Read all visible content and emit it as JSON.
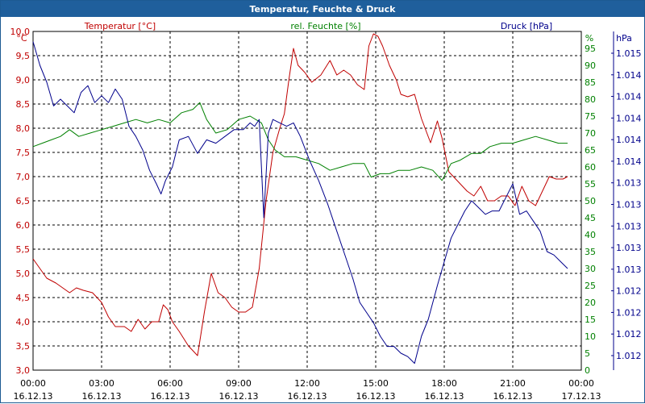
{
  "window": {
    "title": "Temperatur, Feuchte & Druck"
  },
  "chart_data": {
    "type": "line",
    "title": "Temperatur, Feuchte & Druck",
    "legend": {
      "temperature": "Temperatur [°C]",
      "humidity": "rel. Feuchte [%]",
      "pressure": "Druck [hPa]"
    },
    "units": {
      "temperature": "°C",
      "humidity": "%",
      "pressure": "hPa"
    },
    "x_ticks": [
      {
        "time": "00:00",
        "date": "16.12.13"
      },
      {
        "time": "03:00",
        "date": "16.12.13"
      },
      {
        "time": "06:00",
        "date": "16.12.13"
      },
      {
        "time": "09:00",
        "date": "16.12.13"
      },
      {
        "time": "12:00",
        "date": "16.12.13"
      },
      {
        "time": "15:00",
        "date": "16.12.13"
      },
      {
        "time": "18:00",
        "date": "16.12.13"
      },
      {
        "time": "21:00",
        "date": "16.12.13"
      },
      {
        "time": "00:00",
        "date": "17.12.13"
      }
    ],
    "xlim_hours": [
      0,
      24
    ],
    "temperature_axis": {
      "ylim": [
        3.0,
        10.0
      ],
      "ticks": [
        "10,0",
        "9,5",
        "9,0",
        "8,5",
        "8,0",
        "7,5",
        "7,0",
        "6,5",
        "6,0",
        "5,5",
        "5,0",
        "4,5",
        "4,0",
        "3,5",
        "3,0"
      ]
    },
    "humidity_axis": {
      "ylim": [
        0,
        100
      ],
      "ticks": [
        "95",
        "90",
        "85",
        "80",
        "75",
        "70",
        "65",
        "60",
        "55",
        "50",
        "45",
        "40",
        "35",
        "30",
        "25",
        "20",
        "15",
        "10",
        "5",
        "0"
      ]
    },
    "pressure_axis": {
      "ticks": [
        "1.015",
        "1.014",
        "1.014",
        "1.014",
        "1.014",
        "1.014",
        "1.013",
        "1.013",
        "1.013",
        "1.013",
        "1.013",
        "1.012",
        "1.012",
        "1.012",
        "1.012"
      ]
    },
    "grid": true,
    "colors": {
      "temperature": "#c00000",
      "humidity": "#008000",
      "pressure": "#00008b",
      "grid": "#000000",
      "title_bar": "#1f5f9c"
    },
    "series": [
      {
        "name": "Temperatur [°C]",
        "axis": "temperature",
        "points": [
          [
            0.0,
            5.3
          ],
          [
            0.3,
            5.1
          ],
          [
            0.6,
            4.9
          ],
          [
            1.0,
            4.8
          ],
          [
            1.3,
            4.7
          ],
          [
            1.6,
            4.6
          ],
          [
            1.9,
            4.7
          ],
          [
            2.2,
            4.65
          ],
          [
            2.6,
            4.6
          ],
          [
            3.0,
            4.4
          ],
          [
            3.3,
            4.1
          ],
          [
            3.6,
            3.9
          ],
          [
            4.0,
            3.9
          ],
          [
            4.3,
            3.8
          ],
          [
            4.6,
            4.05
          ],
          [
            4.9,
            3.85
          ],
          [
            5.2,
            4.0
          ],
          [
            5.5,
            4.0
          ],
          [
            5.7,
            4.35
          ],
          [
            5.9,
            4.25
          ],
          [
            6.1,
            4.0
          ],
          [
            6.4,
            3.8
          ],
          [
            6.8,
            3.5
          ],
          [
            7.2,
            3.3
          ],
          [
            7.5,
            4.2
          ],
          [
            7.8,
            5.0
          ],
          [
            8.1,
            4.6
          ],
          [
            8.4,
            4.5
          ],
          [
            8.7,
            4.3
          ],
          [
            9.0,
            4.2
          ],
          [
            9.3,
            4.2
          ],
          [
            9.6,
            4.3
          ],
          [
            9.9,
            5.1
          ],
          [
            10.2,
            6.5
          ],
          [
            10.5,
            7.5
          ],
          [
            10.8,
            8.0
          ],
          [
            11.0,
            8.3
          ],
          [
            11.2,
            9.0
          ],
          [
            11.4,
            9.65
          ],
          [
            11.6,
            9.3
          ],
          [
            11.9,
            9.15
          ],
          [
            12.2,
            8.95
          ],
          [
            12.6,
            9.1
          ],
          [
            13.0,
            9.4
          ],
          [
            13.3,
            9.1
          ],
          [
            13.6,
            9.2
          ],
          [
            13.9,
            9.1
          ],
          [
            14.2,
            8.9
          ],
          [
            14.5,
            8.8
          ],
          [
            14.7,
            9.7
          ],
          [
            14.9,
            9.95
          ],
          [
            15.1,
            9.9
          ],
          [
            15.3,
            9.7
          ],
          [
            15.6,
            9.3
          ],
          [
            15.9,
            9.0
          ],
          [
            16.1,
            8.7
          ],
          [
            16.4,
            8.65
          ],
          [
            16.7,
            8.7
          ],
          [
            17.0,
            8.2
          ],
          [
            17.4,
            7.7
          ],
          [
            17.7,
            8.15
          ],
          [
            17.9,
            7.8
          ],
          [
            18.2,
            7.1
          ],
          [
            18.6,
            6.9
          ],
          [
            19.0,
            6.7
          ],
          [
            19.3,
            6.6
          ],
          [
            19.6,
            6.8
          ],
          [
            19.9,
            6.5
          ],
          [
            20.2,
            6.5
          ],
          [
            20.5,
            6.6
          ],
          [
            20.8,
            6.6
          ],
          [
            21.1,
            6.4
          ],
          [
            21.4,
            6.8
          ],
          [
            21.7,
            6.5
          ],
          [
            22.0,
            6.4
          ],
          [
            22.3,
            6.7
          ],
          [
            22.6,
            7.0
          ],
          [
            22.9,
            6.95
          ],
          [
            23.2,
            6.95
          ],
          [
            23.4,
            7.0
          ]
        ]
      },
      {
        "name": "rel. Feuchte [%]",
        "axis": "humidity",
        "points": [
          [
            0.0,
            66
          ],
          [
            0.4,
            67
          ],
          [
            0.8,
            68
          ],
          [
            1.2,
            69
          ],
          [
            1.6,
            71
          ],
          [
            2.0,
            69
          ],
          [
            2.5,
            70
          ],
          [
            3.0,
            71
          ],
          [
            3.5,
            72
          ],
          [
            4.0,
            73
          ],
          [
            4.5,
            74
          ],
          [
            5.0,
            73
          ],
          [
            5.5,
            74
          ],
          [
            6.0,
            73
          ],
          [
            6.5,
            76
          ],
          [
            7.0,
            77
          ],
          [
            7.3,
            79
          ],
          [
            7.6,
            74
          ],
          [
            8.0,
            70
          ],
          [
            8.5,
            71
          ],
          [
            9.0,
            74
          ],
          [
            9.5,
            75
          ],
          [
            10.0,
            73
          ],
          [
            10.3,
            68
          ],
          [
            10.6,
            65
          ],
          [
            11.0,
            63
          ],
          [
            11.5,
            63
          ],
          [
            12.0,
            62
          ],
          [
            12.5,
            61
          ],
          [
            13.0,
            59
          ],
          [
            13.5,
            60
          ],
          [
            14.0,
            61
          ],
          [
            14.5,
            61
          ],
          [
            14.8,
            57
          ],
          [
            15.2,
            58
          ],
          [
            15.6,
            58
          ],
          [
            16.0,
            59
          ],
          [
            16.5,
            59
          ],
          [
            17.0,
            60
          ],
          [
            17.5,
            59
          ],
          [
            17.9,
            56
          ],
          [
            18.3,
            61
          ],
          [
            18.7,
            62
          ],
          [
            19.2,
            64
          ],
          [
            19.6,
            64
          ],
          [
            20.0,
            66
          ],
          [
            20.5,
            67
          ],
          [
            21.0,
            67
          ],
          [
            21.5,
            68
          ],
          [
            22.0,
            69
          ],
          [
            22.5,
            68
          ],
          [
            23.0,
            67
          ],
          [
            23.4,
            67
          ]
        ]
      },
      {
        "name": "Druck [hPa]",
        "axis": "pressure",
        "points": [
          [
            0.0,
            97
          ],
          [
            0.3,
            90
          ],
          [
            0.6,
            85
          ],
          [
            0.9,
            78
          ],
          [
            1.2,
            80
          ],
          [
            1.5,
            78
          ],
          [
            1.8,
            76
          ],
          [
            2.1,
            82
          ],
          [
            2.4,
            84
          ],
          [
            2.7,
            79
          ],
          [
            3.0,
            81
          ],
          [
            3.3,
            79
          ],
          [
            3.6,
            83
          ],
          [
            3.9,
            80
          ],
          [
            4.2,
            72
          ],
          [
            4.5,
            69
          ],
          [
            4.8,
            65
          ],
          [
            5.1,
            59
          ],
          [
            5.4,
            55
          ],
          [
            5.6,
            52
          ],
          [
            5.8,
            56
          ],
          [
            6.1,
            60
          ],
          [
            6.4,
            68
          ],
          [
            6.8,
            69
          ],
          [
            7.2,
            64
          ],
          [
            7.6,
            68
          ],
          [
            8.0,
            67
          ],
          [
            8.4,
            69
          ],
          [
            8.8,
            71
          ],
          [
            9.2,
            71
          ],
          [
            9.5,
            73
          ],
          [
            9.7,
            72
          ],
          [
            9.9,
            74
          ],
          [
            10.1,
            45
          ],
          [
            10.3,
            70
          ],
          [
            10.5,
            74
          ],
          [
            10.8,
            73
          ],
          [
            11.1,
            72
          ],
          [
            11.4,
            73
          ],
          [
            11.7,
            69
          ],
          [
            12.1,
            62
          ],
          [
            12.5,
            56
          ],
          [
            12.9,
            49
          ],
          [
            13.3,
            41
          ],
          [
            13.7,
            33
          ],
          [
            14.0,
            27
          ],
          [
            14.3,
            20
          ],
          [
            14.6,
            17
          ],
          [
            14.9,
            14
          ],
          [
            15.2,
            10
          ],
          [
            15.5,
            7
          ],
          [
            15.8,
            7
          ],
          [
            16.1,
            5
          ],
          [
            16.4,
            4
          ],
          [
            16.7,
            2
          ],
          [
            17.0,
            10
          ],
          [
            17.3,
            15
          ],
          [
            17.7,
            25
          ],
          [
            18.0,
            32
          ],
          [
            18.3,
            39
          ],
          [
            18.6,
            43
          ],
          [
            18.9,
            47
          ],
          [
            19.2,
            50
          ],
          [
            19.5,
            48
          ],
          [
            19.8,
            46
          ],
          [
            20.1,
            47
          ],
          [
            20.4,
            47
          ],
          [
            20.7,
            51
          ],
          [
            21.0,
            55
          ],
          [
            21.3,
            46
          ],
          [
            21.6,
            47
          ],
          [
            21.9,
            44
          ],
          [
            22.2,
            41
          ],
          [
            22.5,
            35
          ],
          [
            22.8,
            34
          ],
          [
            23.1,
            32
          ],
          [
            23.4,
            30
          ]
        ]
      }
    ]
  }
}
